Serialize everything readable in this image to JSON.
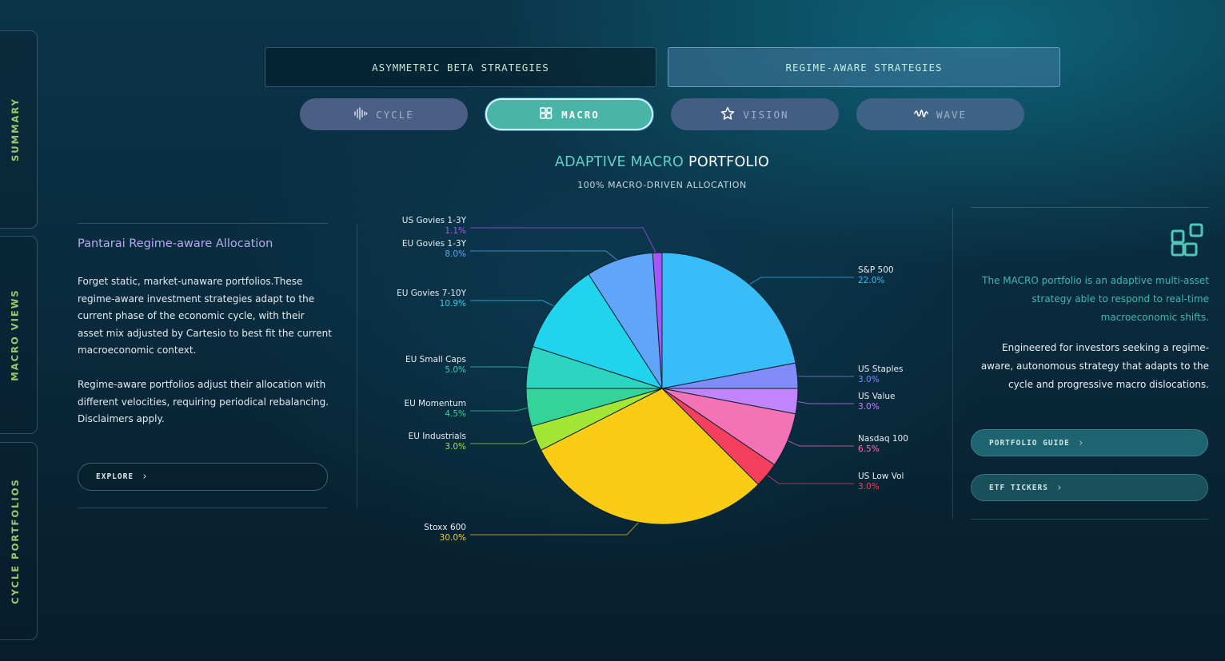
{
  "side_tabs": [
    {
      "label": "SUMMARY"
    },
    {
      "label": "MACRO VIEWS"
    },
    {
      "label": "CYCLE PORTFOLIOS"
    }
  ],
  "strategies": {
    "left": "ASYMMETRIC BETA STRATEGIES",
    "right": "REGIME-AWARE STRATEGIES",
    "active": "right"
  },
  "pills": [
    {
      "label": "CYCLE",
      "icon": "waveform-icon"
    },
    {
      "label": "MACRO",
      "icon": "widgets-icon",
      "active": true
    },
    {
      "label": "VISION",
      "icon": "star-icon"
    },
    {
      "label": "WAVE",
      "icon": "wave-icon"
    }
  ],
  "chart": {
    "title_accent": "ADAPTIVE MACRO",
    "title_main": "PORTFOLIO",
    "subtitle": "100% MACRO-DRIVEN ALLOCATION"
  },
  "left_panel": {
    "title": "Pantarai Regime-aware Allocation",
    "paragraph1": "Forget static, market-unaware portfolios.These regime-aware investment strategies adapt to the current phase of the economic cycle, with their asset mix adjusted by Cartesio to best fit the current macroeconomic context.",
    "paragraph2": "Regime-aware portfolios adjust their allocation with different velocities, requiring periodical rebalancing. Disclaimers apply.",
    "explore_label": "EXPLORE",
    "chevron": "›"
  },
  "right_panel": {
    "icon": "widgets-icon",
    "desc_teal": "The MACRO portfolio is an adaptive multi-asset strategy able to respond to real-time macroeconomic shifts.",
    "desc_white": "Engineered for investors seeking a regime-aware, autonomous strategy that adapts to the cycle and progressive macro dislocations.",
    "guide_label": "PORTFOLIO GUIDE",
    "tickers_label": "ETF TICKERS",
    "chevron": "›"
  },
  "chart_data": {
    "type": "pie",
    "title": "ADAPTIVE MACRO PORTFOLIO",
    "subtitle": "100% MACRO-DRIVEN ALLOCATION",
    "slices": [
      {
        "label": "S&P 500",
        "value": 22.0,
        "display": "22.0%",
        "color": "#38bdf8"
      },
      {
        "label": "US Staples",
        "value": 3.0,
        "display": "3.0%",
        "color": "#818cf8"
      },
      {
        "label": "US Value",
        "value": 3.0,
        "display": "3.0%",
        "color": "#c084fc"
      },
      {
        "label": "Nasdaq 100",
        "value": 6.5,
        "display": "6.5%",
        "color": "#f472b6"
      },
      {
        "label": "US Low Vol",
        "value": 3.0,
        "display": "3.0%",
        "color": "#f43f5e"
      },
      {
        "label": "Stoxx 600",
        "value": 30.0,
        "display": "30.0%",
        "color": "#facc15"
      },
      {
        "label": "EU Industrials",
        "value": 3.0,
        "display": "3.0%",
        "color": "#a3e635"
      },
      {
        "label": "EU Momentum",
        "value": 4.5,
        "display": "4.5%",
        "color": "#34d399"
      },
      {
        "label": "EU Small Caps",
        "value": 5.0,
        "display": "5.0%",
        "color": "#2dd4bf"
      },
      {
        "label": "EU Govies 7-10Y",
        "value": 10.9,
        "display": "10.9%",
        "color": "#22d3ee"
      },
      {
        "label": "EU Govies 1-3Y",
        "value": 8.0,
        "display": "8.0%",
        "color": "#60a5fa"
      },
      {
        "label": "US Govies 1-3Y",
        "value": 1.1,
        "display": "1.1%",
        "color": "#a855f7"
      }
    ],
    "legend": "none"
  }
}
